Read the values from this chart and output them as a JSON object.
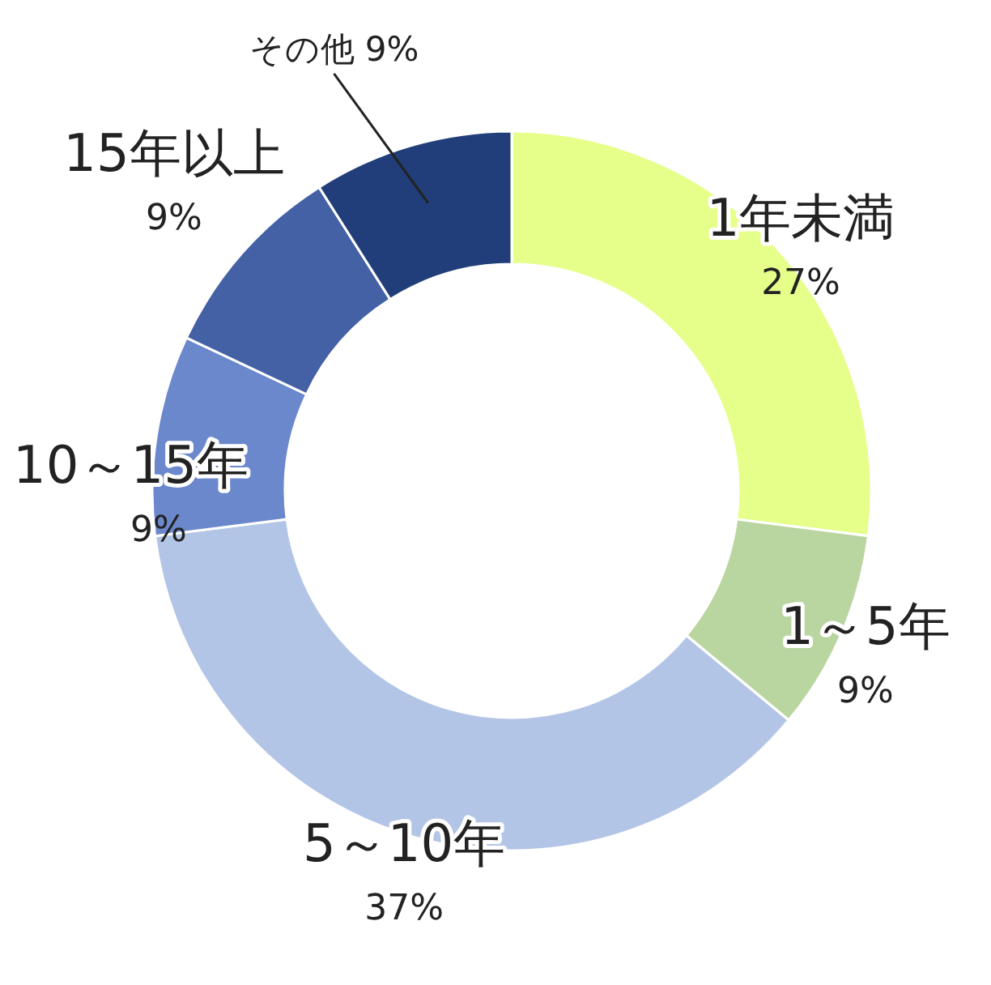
{
  "chart_data": {
    "type": "donut",
    "categories": [
      "1年未満",
      "1～5年",
      "5～10年",
      "10～15年",
      "15年以上",
      "その他"
    ],
    "values": [
      27,
      9,
      37,
      9,
      9,
      9
    ],
    "value_labels": [
      "27%",
      "9%",
      "37%",
      "9%",
      "9%",
      "9%"
    ],
    "colors": [
      "#e6ff8a",
      "#b9d5a0",
      "#b3c5e6",
      "#6b88cc",
      "#4461a6",
      "#223e7a"
    ]
  }
}
